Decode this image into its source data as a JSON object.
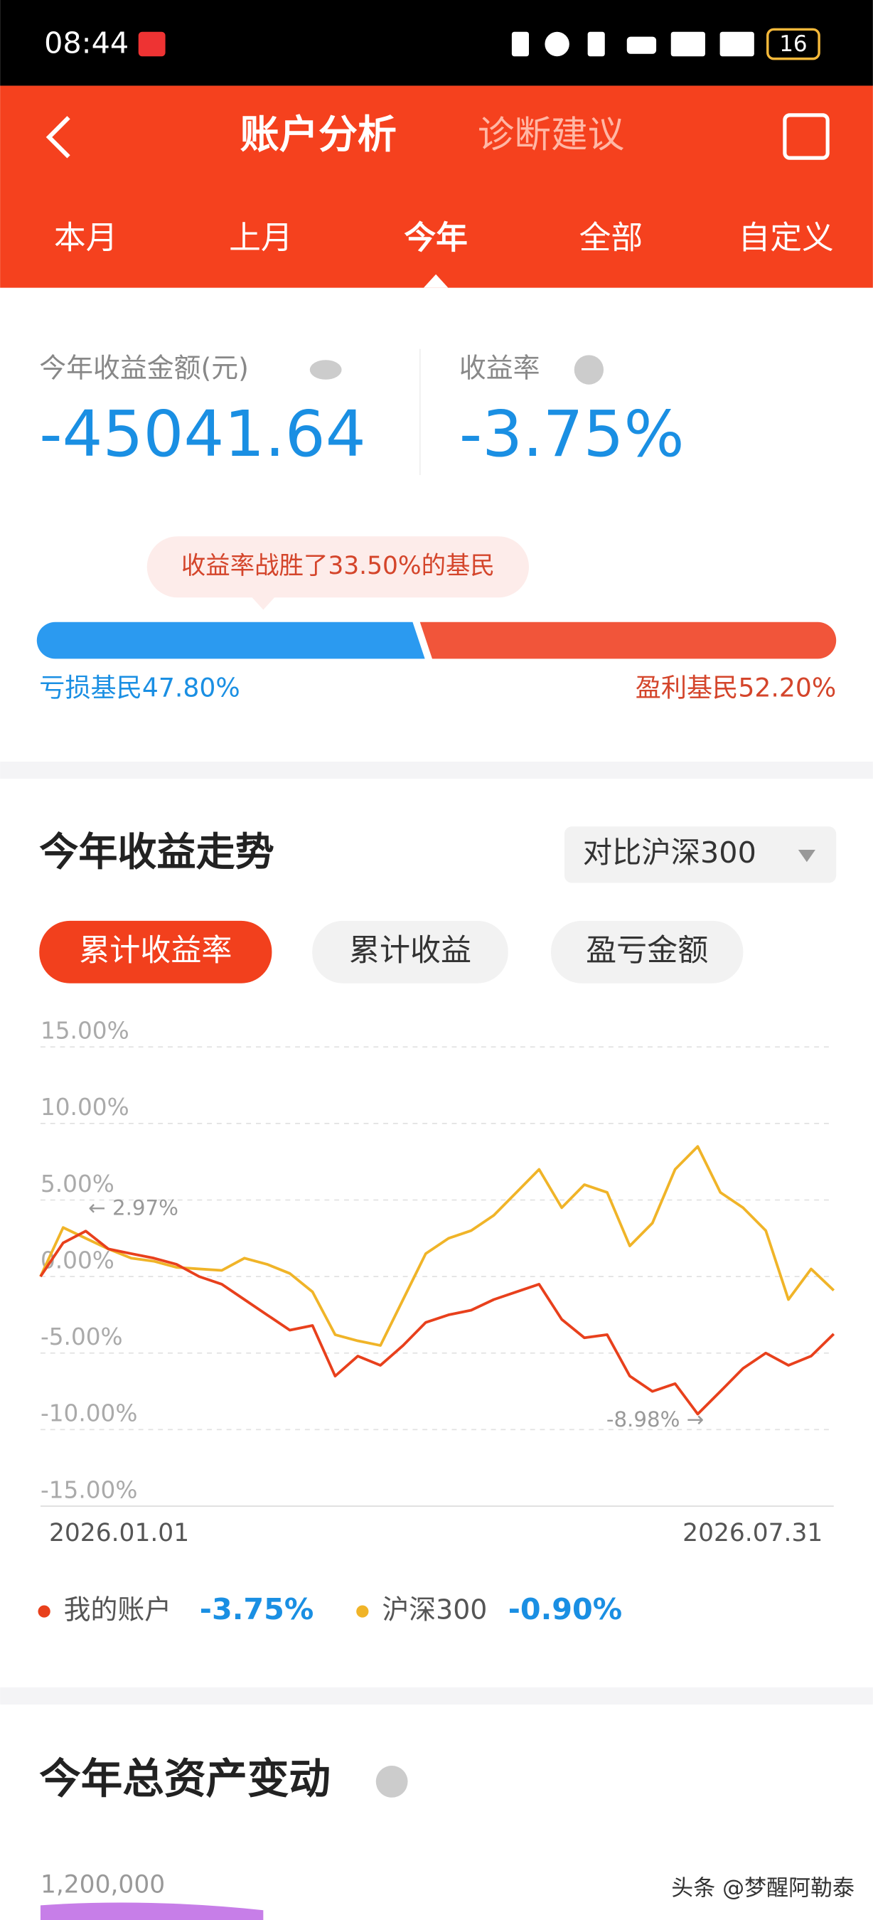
{
  "status_bar": {
    "time": "08:44",
    "battery": "16"
  },
  "header": {
    "title": "账户分析",
    "advice": "诊断建议"
  },
  "period_tabs": [
    "本月",
    "上月",
    "今年",
    "全部",
    "自定义"
  ],
  "summary": {
    "profit_label": "今年收益金额(元)",
    "profit": "-45041.64",
    "rate_label": "收益率",
    "rate": "-3.75%",
    "beat_text": "收益率战胜了33.50%的基民",
    "loss_label": "亏损基民47.80%",
    "gain_label": "盈利基民52.20%"
  },
  "trend": {
    "title": "今年收益走势",
    "compare": "对比沪深300",
    "chips": [
      "累计收益率",
      "累计收益",
      "盈亏金额"
    ]
  },
  "chart_data": {
    "type": "line",
    "categories": [
      "2026.01.01",
      null,
      null,
      null,
      null,
      null,
      null,
      null,
      null,
      null,
      null,
      null,
      null,
      null,
      null,
      null,
      null,
      null,
      null,
      null,
      null,
      null,
      null,
      null,
      null,
      null,
      null,
      null,
      null,
      null,
      null,
      null,
      null,
      null,
      null,
      "2026.07.31"
    ],
    "series": [
      {
        "name": "我的账户",
        "color": "#e8401c",
        "legend_value": "-3.75%",
        "values": [
          0,
          2.2,
          2.97,
          1.8,
          1.5,
          1.2,
          0.8,
          0,
          -0.5,
          -1.5,
          -2.5,
          -3.5,
          -3.2,
          -6.5,
          -5.2,
          -5.8,
          -4.5,
          -3.0,
          -2.5,
          -2.2,
          -1.5,
          -1.0,
          -0.5,
          -2.8,
          -4.0,
          -3.8,
          -6.5,
          -7.5,
          -7.0,
          -8.98,
          -7.5,
          -6.0,
          -5.0,
          -5.8,
          -5.2,
          -3.75
        ]
      },
      {
        "name": "沪深300",
        "color": "#f0b428",
        "legend_value": "-0.90%",
        "values": [
          0,
          3.2,
          2.5,
          1.8,
          1.2,
          1.0,
          0.6,
          0.5,
          0.4,
          1.2,
          0.8,
          0.2,
          -1.0,
          -3.8,
          -4.2,
          -4.5,
          -1.5,
          1.5,
          2.5,
          3.0,
          4.0,
          5.5,
          7.0,
          4.5,
          6.0,
          5.5,
          2.0,
          3.5,
          7.0,
          8.5,
          5.5,
          4.5,
          3.0,
          -1.5,
          0.5,
          -0.9
        ]
      }
    ],
    "ylim": [
      -15,
      15
    ],
    "yticks": [
      {
        "value": 15,
        "label": "15.00%"
      },
      {
        "value": 10,
        "label": "10.00%"
      },
      {
        "value": 5,
        "label": "5.00%"
      },
      {
        "value": 0,
        "label": "0.00%"
      },
      {
        "value": -5,
        "label": "-5.00%"
      },
      {
        "value": -10,
        "label": "-10.00%"
      },
      {
        "value": -15,
        "label": "-15.00%"
      }
    ],
    "grid": true,
    "annotations": [
      "← 2.97%",
      "-8.98% →"
    ]
  },
  "assets": {
    "title": "今年总资产变动",
    "ytick": "1,200,000"
  },
  "watermark": "头条 @梦醒阿勒泰"
}
